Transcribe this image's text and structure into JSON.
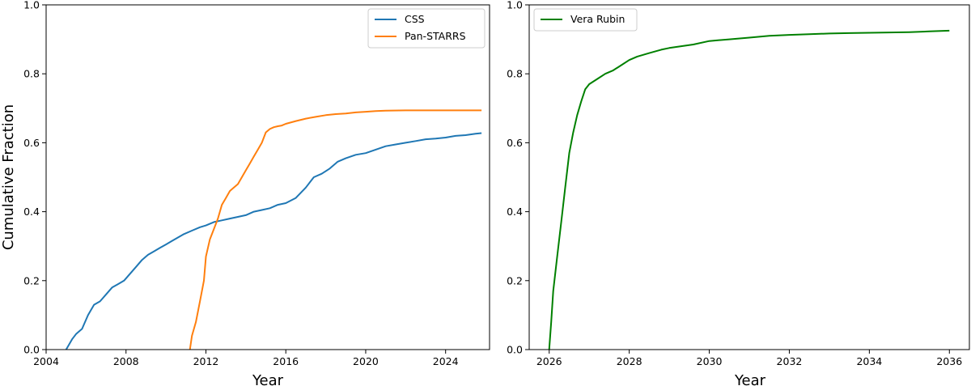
{
  "chart_data": [
    {
      "type": "line",
      "title": "",
      "xlabel": "Year",
      "ylabel": "Cumulative Fraction",
      "xlim": [
        2004,
        2026.2
      ],
      "ylim": [
        0,
        1.0
      ],
      "xticks": [
        2004,
        2008,
        2012,
        2016,
        2020,
        2024
      ],
      "xtick_labels": [
        "2004",
        "2008",
        "2012",
        "2016",
        "2020",
        "2024"
      ],
      "yticks": [
        0.0,
        0.2,
        0.4,
        0.6,
        0.8,
        1.0
      ],
      "ytick_labels": [
        "0.0",
        "0.2",
        "0.4",
        "0.6",
        "0.8",
        "1.0"
      ],
      "grid": false,
      "legend_position": "top-right",
      "series": [
        {
          "name": "CSS",
          "color": "#1f77b4",
          "x": [
            2005.0,
            2005.1,
            2005.3,
            2005.5,
            2005.8,
            2006.1,
            2006.4,
            2006.7,
            2007.0,
            2007.3,
            2007.6,
            2007.9,
            2008.2,
            2008.5,
            2008.8,
            2009.1,
            2009.4,
            2009.7,
            2010.0,
            2010.3,
            2010.6,
            2010.9,
            2011.3,
            2011.7,
            2012.0,
            2012.4,
            2012.8,
            2013.2,
            2013.6,
            2014.0,
            2014.4,
            2014.8,
            2015.2,
            2015.6,
            2016.0,
            2016.5,
            2017.0,
            2017.4,
            2017.8,
            2018.2,
            2018.6,
            2019.0,
            2019.5,
            2020.0,
            2020.5,
            2021.0,
            2021.5,
            2022.0,
            2022.5,
            2023.0,
            2023.5,
            2024.0,
            2024.5,
            2025.0,
            2025.5,
            2025.8
          ],
          "y": [
            0.0,
            0.01,
            0.03,
            0.045,
            0.06,
            0.1,
            0.13,
            0.14,
            0.16,
            0.18,
            0.19,
            0.2,
            0.22,
            0.24,
            0.26,
            0.275,
            0.285,
            0.295,
            0.305,
            0.315,
            0.325,
            0.335,
            0.345,
            0.355,
            0.36,
            0.37,
            0.375,
            0.38,
            0.385,
            0.39,
            0.4,
            0.405,
            0.41,
            0.42,
            0.425,
            0.44,
            0.47,
            0.5,
            0.51,
            0.525,
            0.545,
            0.555,
            0.565,
            0.57,
            0.58,
            0.59,
            0.595,
            0.6,
            0.605,
            0.61,
            0.612,
            0.615,
            0.62,
            0.622,
            0.626,
            0.628
          ]
        },
        {
          "name": "Pan-STARRS",
          "color": "#ff7f0e",
          "x": [
            2011.2,
            2011.3,
            2011.5,
            2011.7,
            2011.9,
            2012.0,
            2012.2,
            2012.4,
            2012.6,
            2012.8,
            2013.0,
            2013.2,
            2013.4,
            2013.6,
            2013.8,
            2014.0,
            2014.2,
            2014.4,
            2014.6,
            2014.8,
            2015.0,
            2015.2,
            2015.4,
            2015.6,
            2015.8,
            2016.0,
            2016.5,
            2017.0,
            2017.5,
            2018.0,
            2018.5,
            2019.0,
            2019.5,
            2020.0,
            2020.5,
            2021.0,
            2022.0,
            2023.0,
            2024.0,
            2025.0,
            2025.8
          ],
          "y": [
            0.0,
            0.04,
            0.08,
            0.14,
            0.2,
            0.27,
            0.32,
            0.35,
            0.38,
            0.42,
            0.44,
            0.46,
            0.47,
            0.48,
            0.5,
            0.52,
            0.54,
            0.56,
            0.58,
            0.6,
            0.63,
            0.64,
            0.645,
            0.648,
            0.65,
            0.655,
            0.663,
            0.67,
            0.675,
            0.68,
            0.683,
            0.685,
            0.688,
            0.69,
            0.692,
            0.693,
            0.694,
            0.694,
            0.694,
            0.694,
            0.694
          ]
        }
      ]
    },
    {
      "type": "line",
      "title": "",
      "xlabel": "Year",
      "ylabel": "",
      "xlim": [
        2025.5,
        2036.5
      ],
      "ylim": [
        0,
        1.0
      ],
      "xticks": [
        2026,
        2028,
        2030,
        2032,
        2034,
        2036
      ],
      "xtick_labels": [
        "2026",
        "2028",
        "2030",
        "2032",
        "2034",
        "2036"
      ],
      "yticks": [
        0.0,
        0.2,
        0.4,
        0.6,
        0.8,
        1.0
      ],
      "ytick_labels": [
        "0.0",
        "0.2",
        "0.4",
        "0.6",
        "0.8",
        "1.0"
      ],
      "grid": false,
      "legend_position": "top-left",
      "series": [
        {
          "name": "Vera Rubin",
          "color": "#008000",
          "x": [
            2026.0,
            2026.05,
            2026.1,
            2026.2,
            2026.3,
            2026.4,
            2026.5,
            2026.6,
            2026.7,
            2026.8,
            2026.9,
            2027.0,
            2027.2,
            2027.4,
            2027.6,
            2027.8,
            2028.0,
            2028.2,
            2028.5,
            2028.8,
            2029.0,
            2029.3,
            2029.6,
            2030.0,
            2030.5,
            2031.0,
            2031.5,
            2032.0,
            2032.5,
            2033.0,
            2033.5,
            2034.0,
            2034.5,
            2035.0,
            2035.5,
            2036.0
          ],
          "y": [
            0.0,
            0.08,
            0.17,
            0.27,
            0.37,
            0.47,
            0.57,
            0.63,
            0.68,
            0.72,
            0.755,
            0.77,
            0.785,
            0.8,
            0.81,
            0.825,
            0.84,
            0.85,
            0.86,
            0.87,
            0.875,
            0.88,
            0.885,
            0.895,
            0.9,
            0.905,
            0.91,
            0.913,
            0.915,
            0.917,
            0.918,
            0.919,
            0.92,
            0.921,
            0.923,
            0.925
          ]
        }
      ]
    }
  ]
}
